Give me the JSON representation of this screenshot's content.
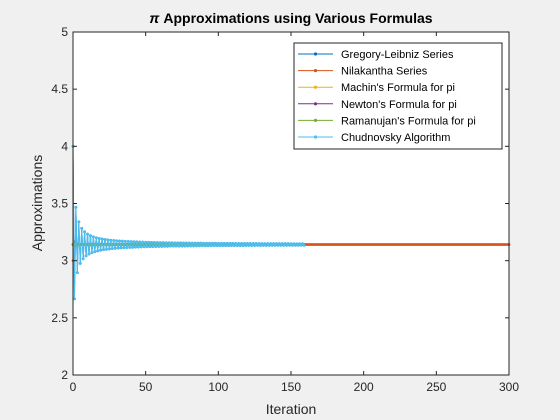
{
  "chart_data": {
    "type": "line",
    "title_symbol": "π",
    "title": "Approximations using Various Formulas",
    "xlabel": "Iteration",
    "ylabel": "Approximations",
    "xlim": [
      0,
      300
    ],
    "ylim": [
      2,
      5
    ],
    "xticks": [
      0,
      50,
      100,
      150,
      200,
      250,
      300
    ],
    "yticks": [
      2,
      2.5,
      3,
      3.5,
      4,
      4.5,
      5
    ],
    "legend_position": "top-right",
    "series": [
      {
        "name": "Gregory-Leibniz Series",
        "color": "#0072BD",
        "kind": "leibniz",
        "n_points": 160
      },
      {
        "name": "Nilakantha Series",
        "color": "#D95319",
        "kind": "nilakantha",
        "n_points": 301
      },
      {
        "name": "Machin's Formula for pi",
        "color": "#EDB120",
        "kind": "constant",
        "value": 3.14159,
        "n_points": 160
      },
      {
        "name": "Newton's Formula for pi",
        "color": "#7E2F8E",
        "kind": "constant",
        "value": 3.14159,
        "n_points": 160
      },
      {
        "name": "Ramanujan's Formula for pi",
        "color": "#77AC30",
        "kind": "constant",
        "value": 3.14159,
        "n_points": 160
      },
      {
        "name": "Chudnovsky Algorithm",
        "color": "#4DBEEE",
        "kind": "leibniz",
        "n_points": 160
      }
    ]
  }
}
